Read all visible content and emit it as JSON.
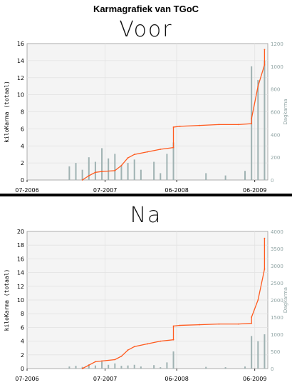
{
  "title": "Karmagrafiek van TGoC",
  "charts": [
    {
      "heading": "Voor"
    },
    {
      "heading": "Na"
    }
  ],
  "colors": {
    "karma_line": "#ff5a1e",
    "daily_bars": "#9fb2b2",
    "plot_bg": "#f4f4f4",
    "grid": "#e2e2e2",
    "right_axis_text": "#90a4a4"
  },
  "chart_data": [
    {
      "type": "line",
      "title": "Voor",
      "xlabel": "",
      "ylabel": "kiloKarma (totaal)",
      "y2label": "Dagkarma",
      "x_ticks": [
        "07-2006",
        "07-2007",
        "06-2008",
        "06-2009"
      ],
      "xlim": [
        "2006-07",
        "2009-08"
      ],
      "ylim": [
        0,
        16
      ],
      "y_ticks": [
        0,
        2,
        4,
        6,
        8,
        10,
        12,
        14,
        16
      ],
      "y2lim": [
        0,
        1200
      ],
      "y2_ticks": [
        0,
        200,
        400,
        600,
        800,
        1000,
        1200
      ],
      "grid": true,
      "series": [
        {
          "axis": "left",
          "style": "line",
          "x": [
            "2007-03",
            "2007-04",
            "2007-05",
            "2007-06",
            "2007-08",
            "2007-09",
            "2007-10",
            "2007-11",
            "2008-01",
            "2008-03",
            "2008-05",
            "2008-05",
            "2008-06",
            "2008-09",
            "2008-12",
            "2009-03",
            "2009-05",
            "2009-05",
            "2009-06",
            "2009-07",
            "2009-07"
          ],
          "y": [
            0,
            0.5,
            0.9,
            1.0,
            1.1,
            1.7,
            2.6,
            3.0,
            3.3,
            3.6,
            3.8,
            6.2,
            6.3,
            6.4,
            6.5,
            6.5,
            6.6,
            7.2,
            11.0,
            13.5,
            15.3
          ]
        },
        {
          "axis": "right",
          "style": "bars",
          "x": [
            "2007-01",
            "2007-02",
            "2007-03",
            "2007-04",
            "2007-05",
            "2007-06",
            "2007-07",
            "2007-08",
            "2007-09",
            "2007-10",
            "2007-11",
            "2007-12",
            "2008-02",
            "2008-03",
            "2008-04",
            "2008-05",
            "2008-10",
            "2009-01",
            "2009-04",
            "2009-05",
            "2009-06",
            "2009-07"
          ],
          "y": [
            120,
            150,
            90,
            200,
            160,
            280,
            190,
            230,
            130,
            150,
            180,
            90,
            160,
            60,
            230,
            330,
            60,
            40,
            80,
            1000,
            880,
            1050
          ]
        }
      ]
    },
    {
      "type": "line",
      "title": "Na",
      "xlabel": "",
      "ylabel": "kiloKarma (totaal)",
      "y2label": "Dagkarma",
      "x_ticks": [
        "07-2006",
        "07-2007",
        "06-2008",
        "06-2009"
      ],
      "xlim": [
        "2006-07",
        "2009-08"
      ],
      "ylim": [
        0,
        20
      ],
      "y_ticks": [
        0,
        2,
        4,
        6,
        8,
        10,
        12,
        14,
        16,
        18,
        20
      ],
      "y2lim": [
        0,
        4000
      ],
      "y2_ticks": [
        0,
        500,
        1000,
        1500,
        2000,
        2500,
        3000,
        3500,
        4000
      ],
      "grid": true,
      "series": [
        {
          "axis": "left",
          "style": "line",
          "x": [
            "2007-03",
            "2007-04",
            "2007-05",
            "2007-06",
            "2007-08",
            "2007-09",
            "2007-10",
            "2007-11",
            "2008-01",
            "2008-03",
            "2008-05",
            "2008-05",
            "2008-06",
            "2008-09",
            "2008-12",
            "2009-03",
            "2009-05",
            "2009-05",
            "2009-06",
            "2009-07",
            "2009-07"
          ],
          "y": [
            0,
            0.5,
            1.0,
            1.1,
            1.3,
            1.8,
            2.7,
            3.2,
            3.6,
            4.0,
            4.2,
            6.2,
            6.3,
            6.4,
            6.5,
            6.5,
            6.6,
            7.5,
            10.0,
            14.5,
            19.0
          ]
        },
        {
          "axis": "right",
          "style": "bars",
          "x": [
            "2007-01",
            "2007-02",
            "2007-03",
            "2007-04",
            "2007-05",
            "2007-06",
            "2007-07",
            "2007-08",
            "2007-09",
            "2007-10",
            "2007-11",
            "2007-12",
            "2008-02",
            "2008-03",
            "2008-04",
            "2008-05",
            "2008-10",
            "2009-01",
            "2009-04",
            "2009-05",
            "2009-06",
            "2009-07"
          ],
          "y": [
            60,
            80,
            50,
            120,
            90,
            200,
            110,
            150,
            80,
            90,
            110,
            60,
            100,
            40,
            180,
            500,
            50,
            40,
            60,
            950,
            800,
            1000
          ]
        }
      ]
    }
  ]
}
